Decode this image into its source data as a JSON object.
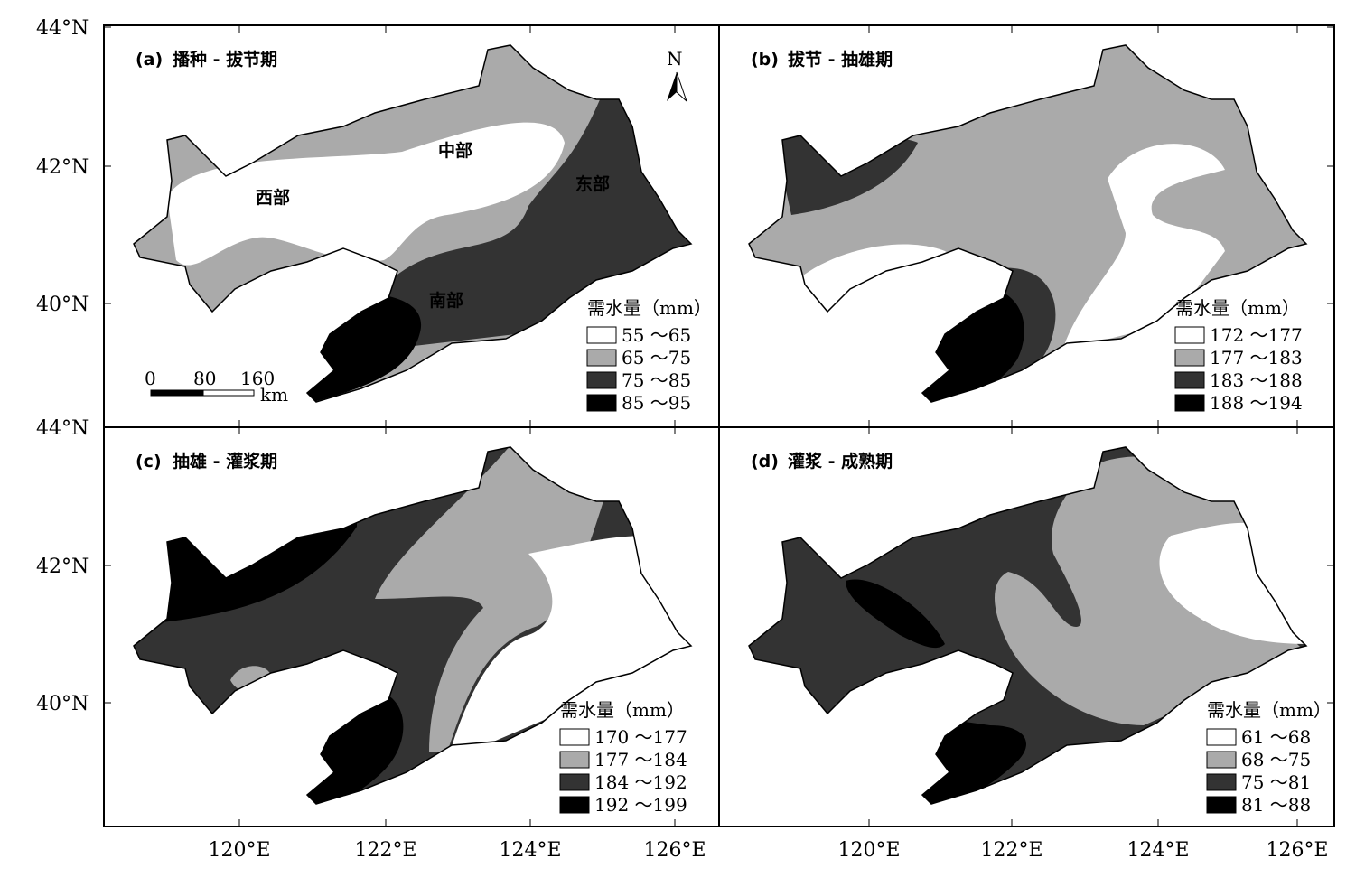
{
  "axes": {
    "lat_labels_top": [
      "44°N",
      "42°N",
      "40°N"
    ],
    "lat_labels_bottom": [
      "44°N",
      "42°N",
      "40°N"
    ],
    "lon_labels_left": [
      "120°E",
      "122°E",
      "124°E",
      "126°E"
    ],
    "lon_labels_right": [
      "120°E",
      "122°E",
      "124°E",
      "126°E"
    ]
  },
  "panels": [
    {
      "label": "(a)",
      "title": "播种 - 拔节期",
      "legend_title": "需水量（mm）",
      "legend": [
        "55 ～65",
        "65 ～75",
        "75 ～85",
        "85 ～95"
      ]
    },
    {
      "label": "(b)",
      "title": "拔节 - 抽雄期",
      "legend_title": "需水量（mm）",
      "legend": [
        "172 ～177",
        "177 ～183",
        "183 ～188",
        "188 ～194"
      ]
    },
    {
      "label": "(c)",
      "title": "抽雄 - 灌浆期",
      "legend_title": "需水量（mm）",
      "legend": [
        "170 ～177",
        "177 ～184",
        "184 ～192",
        "192 ～199"
      ]
    },
    {
      "label": "(d)",
      "title": "灌浆 - 成熟期",
      "legend_title": "需水量（mm）",
      "legend": [
        "61 ～68",
        "68 ～75",
        "75 ～81",
        "81 ～88"
      ]
    }
  ],
  "regions": [
    "西部",
    "中部",
    "东部",
    "南部"
  ],
  "north_arrow": "N",
  "scale_bar": {
    "ticks": [
      "0",
      "80",
      "160"
    ],
    "unit": "km"
  }
}
